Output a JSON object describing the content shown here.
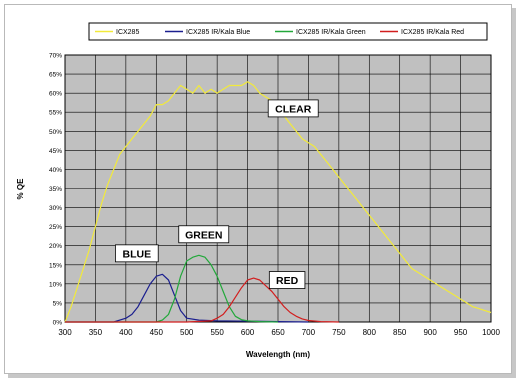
{
  "chart_data": {
    "type": "line",
    "title": "",
    "xlabel": "Wavelength (nm)",
    "ylabel": "% QE",
    "xlim": [
      300,
      1000
    ],
    "ylim": [
      0,
      70
    ],
    "x_ticks": [
      "300",
      "350",
      "400",
      "450",
      "500",
      "550",
      "600",
      "650",
      "700",
      "750",
      "800",
      "850",
      "900",
      "950",
      "1000"
    ],
    "y_ticks": [
      "0%",
      "5%",
      "10%",
      "15%",
      "20%",
      "25%",
      "30%",
      "35%",
      "40%",
      "45%",
      "50%",
      "55%",
      "60%",
      "65%",
      "70%"
    ],
    "grid": true,
    "legend_position": "top",
    "series": [
      {
        "name": "ICX285",
        "color": "#f2ea3a",
        "x": [
          300,
          310,
          320,
          330,
          340,
          350,
          360,
          370,
          380,
          390,
          400,
          410,
          420,
          430,
          440,
          450,
          460,
          470,
          480,
          490,
          500,
          510,
          520,
          530,
          540,
          550,
          560,
          570,
          580,
          590,
          600,
          610,
          620,
          630,
          640,
          650,
          660,
          670,
          680,
          690,
          700,
          710,
          720,
          730,
          740,
          750,
          760,
          770,
          780,
          790,
          800,
          810,
          820,
          830,
          840,
          850,
          860,
          870,
          880,
          890,
          900,
          910,
          920,
          930,
          940,
          950,
          960,
          970,
          980,
          990,
          1000
        ],
        "values": [
          0,
          4,
          9,
          14,
          19,
          25,
          31,
          36,
          40,
          44,
          46,
          48,
          50,
          52,
          54,
          57,
          57,
          58,
          60,
          62,
          61,
          60,
          62,
          60,
          61,
          60,
          61,
          62,
          62,
          62,
          63,
          62,
          60,
          59,
          58,
          56,
          54,
          52,
          50,
          48,
          47,
          46,
          44,
          42,
          40,
          38,
          36,
          34,
          32,
          30,
          28,
          26,
          24,
          22,
          20,
          18,
          16,
          14,
          13,
          12,
          11,
          10,
          9,
          8,
          7,
          6,
          5,
          4,
          3.5,
          3,
          2.5
        ]
      },
      {
        "name": "ICX285 IR/Kala Blue",
        "color": "#1b1f8f",
        "x": [
          300,
          350,
          380,
          400,
          410,
          420,
          430,
          440,
          450,
          460,
          470,
          480,
          490,
          500,
          520,
          550,
          600,
          650,
          700
        ],
        "values": [
          0,
          0,
          0,
          1,
          2,
          4,
          7,
          10,
          12,
          12.5,
          11,
          7,
          3,
          1,
          0.5,
          0.3,
          0.2,
          0.1,
          0
        ]
      },
      {
        "name": "ICX285 IR/Kala Green",
        "color": "#22a83a",
        "x": [
          300,
          450,
          460,
          470,
          480,
          490,
          500,
          510,
          520,
          530,
          540,
          550,
          560,
          570,
          580,
          590,
          600,
          620,
          650
        ],
        "values": [
          0,
          0,
          0.5,
          2,
          6,
          12,
          16,
          17,
          17.5,
          17,
          15,
          12,
          8,
          4,
          1.5,
          0.6,
          0.3,
          0.1,
          0
        ]
      },
      {
        "name": "ICX285 IR/Kala Red",
        "color": "#d21e1e",
        "x": [
          300,
          500,
          540,
          550,
          560,
          570,
          580,
          590,
          600,
          610,
          620,
          630,
          640,
          650,
          660,
          670,
          680,
          690,
          700,
          720,
          750
        ],
        "values": [
          0,
          0,
          0.3,
          1,
          2,
          4,
          6.5,
          9,
          11,
          11.5,
          11,
          9.5,
          8,
          6,
          4,
          2.5,
          1.5,
          0.8,
          0.4,
          0.1,
          0
        ]
      }
    ],
    "annotations": [
      {
        "text": "CLEAR",
        "x": 675,
        "y": 56
      },
      {
        "text": "GREEN",
        "x": 528,
        "y": 23
      },
      {
        "text": "BLUE",
        "x": 418,
        "y": 18
      },
      {
        "text": "RED",
        "x": 665,
        "y": 11
      }
    ]
  }
}
